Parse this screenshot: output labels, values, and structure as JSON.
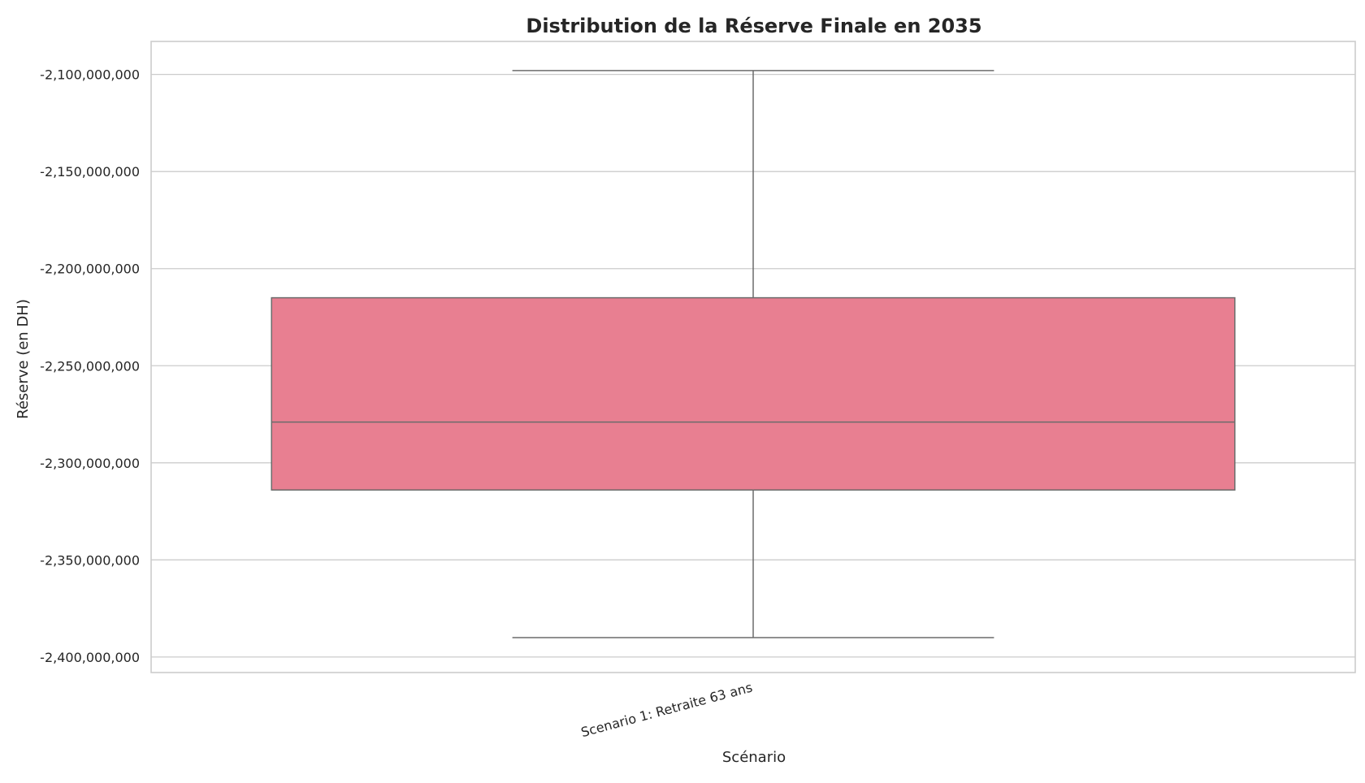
{
  "chart_data": {
    "type": "box",
    "title": "Distribution de la Réserve Finale en 2035",
    "xlabel": "Scénario",
    "ylabel": "Réserve (en DH)",
    "ylim": [
      -2408000000,
      -2083000000
    ],
    "yticks": [
      -2100000000,
      -2150000000,
      -2200000000,
      -2250000000,
      -2300000000,
      -2350000000,
      -2400000000
    ],
    "ytick_labels": [
      "-2,100,000,000",
      "-2,150,000,000",
      "-2,200,000,000",
      "-2,250,000,000",
      "-2,300,000,000",
      "-2,350,000,000",
      "-2,400,000,000"
    ],
    "categories": [
      "Scenario 1: Retraite 63 ans"
    ],
    "boxes": [
      {
        "category": "Scenario 1: Retraite 63 ans",
        "whisker_low": -2390000000,
        "q1": -2314000000,
        "median": -2279000000,
        "q3": -2215000000,
        "whisker_high": -2098000000,
        "fill_color": "#e87f91",
        "edge_color": "#6b6b6b"
      }
    ],
    "grid": true,
    "grid_color": "#cccccc",
    "spine_color": "#cccccc",
    "legend": false
  }
}
